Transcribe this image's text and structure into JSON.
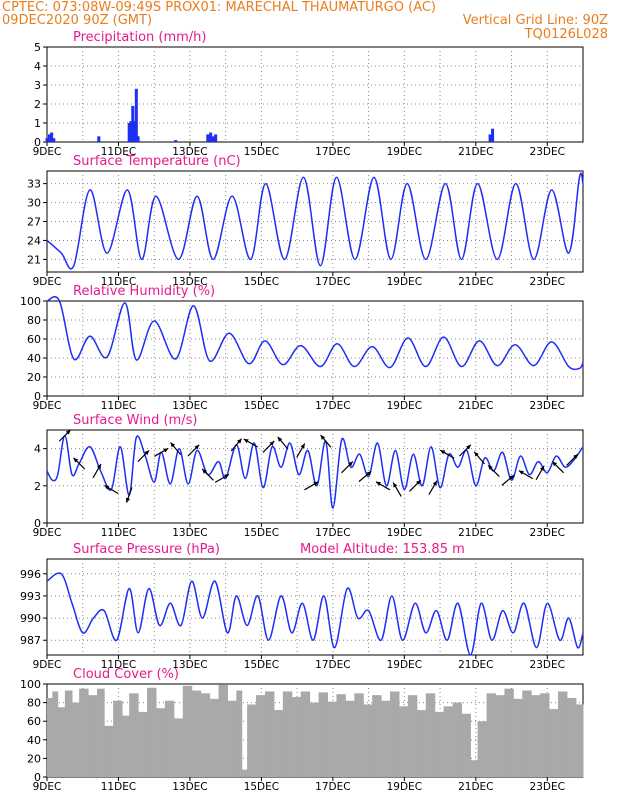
{
  "header": {
    "line1_left": "CPTEC:   073:08W-09:49S   PROX01: MARECHAL THAUMATURGO (AC)",
    "line2_left": "09DEC2020 90Z (GMT)",
    "line2_right": "Vertical Grid Line: 90Z",
    "line3_right": "TQ0126L028"
  },
  "colors": {
    "header_text": "#e87e1e",
    "title_text": "#e8198c",
    "series": "#1e2ef5",
    "cloud": "#a9a9a9",
    "arrow": "#000000",
    "grid": "#888888"
  },
  "x_ticks": [
    "9DEC",
    "11DEC",
    "13DEC",
    "15DEC",
    "17DEC",
    "19DEC",
    "21DEC",
    "23DEC"
  ],
  "x_range_days": [
    9,
    24
  ],
  "chart_data": [
    {
      "id": "precip",
      "type": "bar",
      "title": "Precipitation  (mm/h)",
      "ylim": [
        0,
        5
      ],
      "yticks": [
        "0",
        "1",
        "2",
        "3",
        "4",
        "5"
      ],
      "x": [
        9.0,
        9.07,
        9.13,
        9.19,
        10.45,
        11.3,
        11.35,
        11.4,
        11.45,
        11.5,
        11.55,
        12.6,
        13.5,
        13.58,
        13.65,
        13.72,
        21.4,
        21.47
      ],
      "values": [
        0.2,
        0.4,
        0.5,
        0.2,
        0.3,
        1.0,
        1.1,
        1.9,
        1.1,
        2.8,
        0.3,
        0.1,
        0.4,
        0.5,
        0.3,
        0.4,
        0.4,
        0.7
      ]
    },
    {
      "id": "temp",
      "type": "line",
      "title": "Surface Temperature (nC)",
      "ylim": [
        19,
        35
      ],
      "yticks": [
        "21",
        "24",
        "27",
        "30",
        "33"
      ],
      "x": [
        9.0,
        9.4,
        9.75,
        10.2,
        10.68,
        11.25,
        11.65,
        12.05,
        12.68,
        13.2,
        13.65,
        14.18,
        14.7,
        15.12,
        15.65,
        16.18,
        16.65,
        17.1,
        17.62,
        18.15,
        18.62,
        19.08,
        19.6,
        20.15,
        20.6,
        21.05,
        21.6,
        22.12,
        22.62,
        23.12,
        23.6,
        23.9,
        24.0
      ],
      "values": [
        24,
        22,
        20,
        32,
        22,
        32,
        21,
        31,
        21,
        31,
        21,
        31,
        21,
        33,
        21,
        34,
        20,
        34,
        21,
        34,
        21,
        33,
        21,
        33,
        21,
        33,
        21,
        33,
        21,
        32,
        22,
        34,
        33
      ]
    },
    {
      "id": "rh",
      "type": "line",
      "title": "Relative Humidity (%)",
      "ylim": [
        0,
        100
      ],
      "yticks": [
        "0",
        "20",
        "40",
        "60",
        "80",
        "100"
      ],
      "x": [
        9.0,
        9.35,
        9.75,
        10.2,
        10.68,
        11.18,
        11.5,
        12.0,
        12.6,
        13.1,
        13.55,
        14.1,
        14.65,
        15.1,
        15.6,
        16.1,
        16.65,
        17.12,
        17.6,
        18.1,
        18.6,
        19.1,
        19.6,
        20.1,
        20.6,
        21.1,
        21.6,
        22.1,
        22.62,
        23.12,
        23.6,
        23.9,
        24.0
      ],
      "values": [
        100,
        100,
        39,
        63,
        41,
        98,
        38,
        79,
        39,
        95,
        37,
        66,
        34,
        58,
        33,
        53,
        31,
        55,
        31,
        52,
        30,
        61,
        31,
        62,
        31,
        58,
        32,
        54,
        32,
        57,
        31,
        29,
        35
      ]
    },
    {
      "id": "wind",
      "type": "line",
      "title": "Surface Wind  (m/s)",
      "ylim": [
        0,
        5
      ],
      "yticks": [
        "0",
        "2",
        "4"
      ],
      "x": [
        9.0,
        9.15,
        9.3,
        9.5,
        9.7,
        9.9,
        10.2,
        10.5,
        10.8,
        11.05,
        11.3,
        11.5,
        11.75,
        12.0,
        12.2,
        12.45,
        12.7,
        12.95,
        13.2,
        13.5,
        13.8,
        14.0,
        14.3,
        14.55,
        14.8,
        15.05,
        15.3,
        15.55,
        15.8,
        16.05,
        16.3,
        16.55,
        16.8,
        17.0,
        17.25,
        17.5,
        17.75,
        18.0,
        18.25,
        18.5,
        18.75,
        19.0,
        19.25,
        19.5,
        19.75,
        20.0,
        20.25,
        20.5,
        20.75,
        21.0,
        21.25,
        21.5,
        21.75,
        22.0,
        22.25,
        22.5,
        22.75,
        23.0,
        23.25,
        23.5,
        23.75,
        24.0
      ],
      "values": [
        2.8,
        2.3,
        2.6,
        4.7,
        2.6,
        3.2,
        4.1,
        2.8,
        1.8,
        4.1,
        1.5,
        4.6,
        3.6,
        2.2,
        3.8,
        2.1,
        4.0,
        2.1,
        3.9,
        2.6,
        3.3,
        2.4,
        4.2,
        2.4,
        4.3,
        1.9,
        4.1,
        3.0,
        4.3,
        2.6,
        3.9,
        2.0,
        4.4,
        0.8,
        4.5,
        3.0,
        3.7,
        2.5,
        4.3,
        2.0,
        3.9,
        1.8,
        3.7,
        2.0,
        4.1,
        1.9,
        3.7,
        3.0,
        3.9,
        2.0,
        3.5,
        2.8,
        3.8,
        2.3,
        3.6,
        2.6,
        3.3,
        2.7,
        3.6,
        3.0,
        3.4,
        4.1
      ]
    },
    {
      "id": "pres",
      "type": "line",
      "title": "Surface Pressure (hPa)",
      "subtitle": "Model Altitude: 153.85 m",
      "ylim": [
        985,
        998
      ],
      "yticks": [
        "987",
        "990",
        "993",
        "996"
      ],
      "x": [
        9.0,
        9.4,
        9.7,
        10.0,
        10.3,
        10.6,
        10.95,
        11.3,
        11.55,
        11.85,
        12.15,
        12.45,
        12.75,
        13.05,
        13.35,
        13.7,
        14.05,
        14.3,
        14.6,
        14.9,
        15.2,
        15.55,
        15.85,
        16.15,
        16.45,
        16.75,
        17.05,
        17.4,
        17.7,
        18.0,
        18.35,
        18.65,
        18.95,
        19.3,
        19.6,
        19.9,
        20.2,
        20.5,
        20.85,
        21.15,
        21.45,
        21.75,
        22.05,
        22.35,
        22.7,
        23.0,
        23.35,
        23.6,
        23.85,
        24.0
      ],
      "values": [
        995,
        996,
        992,
        988,
        990,
        991,
        987,
        994,
        988,
        994,
        989,
        992,
        989,
        995,
        990,
        995,
        988,
        993,
        989,
        993,
        987,
        993,
        988,
        992,
        987,
        993,
        986,
        994,
        990,
        991,
        987,
        993,
        987,
        992,
        988,
        991,
        987,
        992,
        985,
        992,
        987,
        991,
        988,
        992,
        986,
        992,
        987,
        990,
        986,
        988
      ]
    },
    {
      "id": "cloud",
      "type": "area",
      "title": "Cloud Cover (%)",
      "ylim": [
        0,
        100
      ],
      "yticks": [
        "0",
        "20",
        "40",
        "60",
        "80",
        "100"
      ],
      "x": [
        9.0,
        9.15,
        9.3,
        9.5,
        9.7,
        9.9,
        10.15,
        10.4,
        10.6,
        10.85,
        11.1,
        11.3,
        11.55,
        11.8,
        12.05,
        12.3,
        12.55,
        12.8,
        13.05,
        13.3,
        13.55,
        13.8,
        14.05,
        14.3,
        14.45,
        14.6,
        14.85,
        15.1,
        15.35,
        15.6,
        15.85,
        16.1,
        16.35,
        16.6,
        16.85,
        17.1,
        17.35,
        17.6,
        17.85,
        18.1,
        18.35,
        18.6,
        18.85,
        19.1,
        19.35,
        19.6,
        19.85,
        20.1,
        20.35,
        20.6,
        20.85,
        21.05,
        21.3,
        21.55,
        21.8,
        22.05,
        22.3,
        22.55,
        22.8,
        23.05,
        23.3,
        23.55,
        23.8,
        24.0
      ],
      "values": [
        85,
        92,
        75,
        93,
        80,
        95,
        88,
        95,
        55,
        82,
        66,
        90,
        70,
        96,
        74,
        82,
        63,
        98,
        93,
        90,
        84,
        99,
        82,
        93,
        8,
        78,
        88,
        92,
        72,
        92,
        86,
        92,
        80,
        91,
        81,
        89,
        82,
        90,
        78,
        88,
        82,
        92,
        76,
        88,
        72,
        90,
        70,
        76,
        80,
        68,
        18,
        60,
        90,
        88,
        95,
        84,
        93,
        88,
        90,
        73,
        92,
        85,
        78,
        84
      ]
    }
  ],
  "wind_arrows": {
    "x": [
      9.5,
      9.9,
      10.4,
      10.8,
      11.3,
      11.7,
      12.2,
      12.6,
      13.1,
      13.5,
      13.9,
      14.3,
      14.7,
      15.2,
      15.6,
      16.1,
      16.4,
      16.8,
      17.4,
      17.9,
      18.4,
      18.8,
      19.3,
      19.8,
      20.2,
      20.7,
      21.1,
      21.5,
      21.9,
      22.4,
      22.8,
      23.3,
      23.7
    ],
    "dir_deg": [
      45,
      315,
      30,
      300,
      200,
      45,
      60,
      320,
      45,
      315,
      60,
      40,
      300,
      45,
      320,
      30,
      60,
      320,
      45,
      50,
      300,
      330,
      45,
      30,
      300,
      45,
      320,
      315,
      50,
      300,
      30,
      315,
      45
    ]
  }
}
